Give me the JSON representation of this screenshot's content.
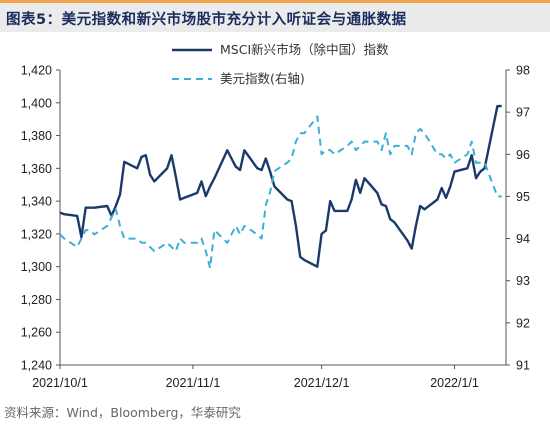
{
  "header": {
    "title": "图表5：美元指数和新兴市场股市充分计入听证会与通胀数据"
  },
  "source": "资料来源：Wind，Bloomberg，华泰研究",
  "colors": {
    "msci_line": "#1b3a6b",
    "dxy_line": "#3ab0d8",
    "header_bg": "#ebebeb",
    "header_accent": "#f0a24a",
    "title_color": "#1b2d5f"
  },
  "chart_data": {
    "type": "line",
    "title": "",
    "x_axis": {
      "tick_labels": [
        "2021/10/1",
        "2021/11/1",
        "2021/12/1",
        "2022/1/1"
      ],
      "tick_positions": [
        0,
        31,
        61,
        92
      ],
      "range": [
        0,
        104
      ],
      "unit": "days from 2021/10/1"
    },
    "y_left": {
      "range": [
        1240,
        1420
      ],
      "ticks": [
        1240,
        1260,
        1280,
        1300,
        1320,
        1340,
        1360,
        1380,
        1400,
        1420
      ],
      "format": "comma"
    },
    "y_right": {
      "range": [
        91,
        98
      ],
      "ticks": [
        91,
        92,
        93,
        94,
        95,
        96,
        97,
        98
      ]
    },
    "grid": false,
    "legend_position": "top-center",
    "series": [
      {
        "name": "MSCI新兴市场（除中国）指数",
        "axis": "left",
        "style": "solid",
        "x": [
          0,
          1,
          4,
          5,
          6,
          7,
          8,
          11,
          12,
          13,
          14,
          15,
          18,
          19,
          20,
          21,
          22,
          25,
          26,
          27,
          28,
          29,
          32,
          33,
          34,
          35,
          36,
          39,
          40,
          41,
          42,
          43,
          46,
          47,
          48,
          49,
          50,
          53,
          54,
          55,
          56,
          57,
          60,
          61,
          62,
          63,
          64,
          67,
          68,
          69,
          70,
          71,
          74,
          75,
          76,
          77,
          78,
          81,
          82,
          83,
          84,
          85,
          88,
          89,
          90,
          91,
          92,
          95,
          96,
          97,
          98,
          99,
          102,
          103
        ],
        "y": [
          1333,
          1332,
          1331,
          1318,
          1336,
          1336,
          1336,
          1337,
          1331,
          1337,
          1344,
          1364,
          1360,
          1367,
          1368,
          1356,
          1352,
          1360,
          1368,
          1355,
          1341,
          1342,
          1345,
          1352,
          1343,
          1349,
          1354,
          1371,
          1366,
          1361,
          1359,
          1371,
          1360,
          1359,
          1366,
          1358,
          1349,
          1341,
          1340,
          1325,
          1306,
          1304,
          1300,
          1320,
          1322,
          1340,
          1334,
          1334,
          1341,
          1353,
          1345,
          1354,
          1345,
          1338,
          1337,
          1329,
          1327,
          1316,
          1311,
          1325,
          1337,
          1335,
          1341,
          1348,
          1342,
          1349,
          1358,
          1360,
          1368,
          1354,
          1358,
          1360,
          1398,
          1398
        ]
      },
      {
        "name": "美元指数(右轴)",
        "axis": "right",
        "style": "dashed",
        "x": [
          0,
          1,
          4,
          5,
          6,
          7,
          8,
          11,
          12,
          13,
          14,
          15,
          18,
          19,
          20,
          21,
          22,
          25,
          26,
          27,
          28,
          29,
          32,
          33,
          34,
          35,
          36,
          39,
          40,
          41,
          42,
          43,
          46,
          47,
          48,
          49,
          50,
          53,
          54,
          55,
          56,
          57,
          60,
          61,
          62,
          63,
          64,
          67,
          68,
          69,
          70,
          71,
          74,
          75,
          76,
          77,
          78,
          81,
          82,
          83,
          84,
          85,
          88,
          89,
          90,
          91,
          92,
          95,
          96,
          97,
          98,
          99,
          102,
          103
        ],
        "y": [
          94.1,
          94.0,
          93.8,
          94.0,
          94.2,
          94.2,
          94.1,
          94.3,
          94.5,
          94.7,
          94.3,
          94.0,
          94.0,
          93.9,
          93.9,
          93.8,
          93.7,
          93.9,
          93.8,
          93.7,
          94.0,
          93.9,
          93.9,
          94.0,
          93.7,
          93.3,
          94.2,
          93.9,
          94.1,
          94.3,
          94.1,
          94.3,
          94.1,
          94.0,
          94.8,
          95.1,
          95.6,
          95.8,
          95.9,
          96.3,
          96.5,
          96.5,
          96.9,
          96.0,
          96.1,
          96.1,
          96.0,
          96.2,
          96.3,
          96.1,
          96.2,
          96.3,
          96.3,
          96.1,
          96.5,
          96.0,
          96.2,
          96.2,
          96.0,
          96.5,
          96.6,
          96.5,
          96.0,
          96.0,
          95.9,
          96.0,
          95.8,
          96.0,
          96.3,
          95.8,
          95.8,
          95.8,
          95.0,
          95.0
        ]
      }
    ]
  }
}
